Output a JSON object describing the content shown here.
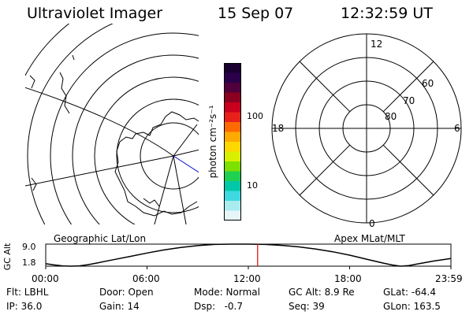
{
  "header": {
    "title": "Ultraviolet Imager",
    "date": "15 Sep 07",
    "time": "12:32:59 UT"
  },
  "geo_map": {
    "label": "Geographic Lat/Lon"
  },
  "colorbar": {
    "unit_label": "photon cm⁻²s⁻¹",
    "ticks": [
      "100",
      "10"
    ],
    "colors": [
      "#1a0030",
      "#2a004a",
      "#50003a",
      "#8b0020",
      "#c8001e",
      "#e8201a",
      "#ff6a00",
      "#ffaa00",
      "#ffd800",
      "#d8f000",
      "#7ce000",
      "#20d050",
      "#00c8a8",
      "#40d8e0",
      "#a8ecf0",
      "#e6f6f8"
    ]
  },
  "apex_plot": {
    "label": "Apex MLat/MLT",
    "mlt_labels": {
      "top": "12",
      "bottom": "0",
      "left": "18",
      "right": "6"
    },
    "lat_labels": [
      "60",
      "70",
      "80"
    ]
  },
  "chart_data": {
    "type": "line",
    "ylabel": "GC Alt",
    "yticks": [
      "9.0",
      "1.8"
    ],
    "ylim": [
      1.8,
      9.0
    ],
    "xlim": [
      0,
      24
    ],
    "xtick_labels": [
      "00:00",
      "06:00",
      "12:00",
      "18:00",
      "23:59"
    ],
    "series": [
      {
        "x": [
          0,
          0.5,
          1,
          1.5,
          2,
          2.5,
          3,
          4,
          5,
          6,
          7,
          8,
          9,
          10,
          11,
          12,
          13,
          14,
          15,
          16,
          17,
          18,
          19,
          20,
          20.5,
          21,
          21.5,
          22,
          23,
          24
        ],
        "values": [
          2.6,
          2.2,
          1.9,
          1.8,
          1.9,
          2.3,
          2.8,
          3.9,
          5.0,
          6.1,
          7.1,
          7.9,
          8.5,
          8.9,
          9.0,
          9.0,
          8.9,
          8.6,
          8.1,
          7.4,
          6.5,
          5.4,
          4.1,
          2.8,
          2.2,
          1.8,
          2.0,
          2.5,
          3.5,
          4.3
        ]
      }
    ],
    "marker_time": 12.55,
    "marker_color": "#e00000"
  },
  "info": {
    "filter": "Flt: LBHL",
    "door": "Door: Open",
    "mode": "Mode: Normal",
    "gc_alt": "GC Alt: 8.9 Re",
    "glat": "GLat: -64.4",
    "ip": "IP: 36.0",
    "gain": "Gain: 14",
    "dsp": "Dsp:   -0.7",
    "seq": "Seq: 39",
    "glon": "GLon: 163.5"
  }
}
